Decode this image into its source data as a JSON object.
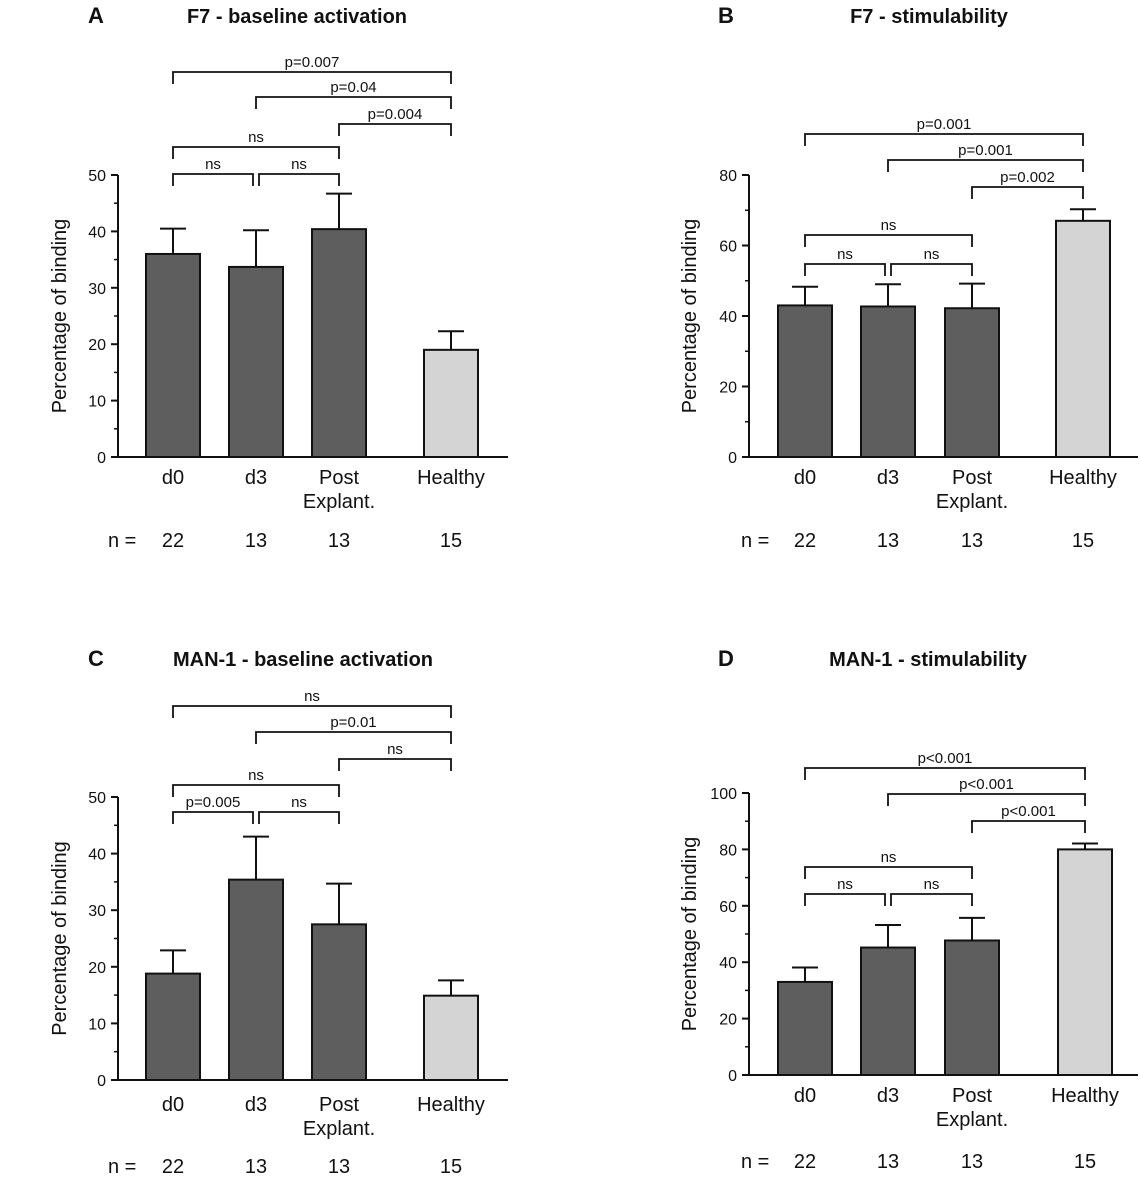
{
  "figure": {
    "n_prefix": "n ="
  },
  "chart_data": [
    {
      "panel": "A",
      "type": "bar",
      "title": "F7 - baseline activation",
      "ylabel": "Percentage of binding",
      "xlabel": "",
      "categories": [
        "d0",
        "d3",
        "Post\nExplant.",
        "Healthy"
      ],
      "values": [
        36,
        33.7,
        40.4,
        19
      ],
      "errors": [
        4.5,
        6.5,
        6.3,
        3.3
      ],
      "bar_colors": [
        "#5e5e5e",
        "#5e5e5e",
        "#5e5e5e",
        "#d4d4d4"
      ],
      "ylim": [
        0,
        50
      ],
      "yticks": [
        0,
        10,
        20,
        30,
        40,
        50
      ],
      "n": [
        "22",
        "13",
        "13",
        "15"
      ],
      "grid": false,
      "comparisons": [
        {
          "from": 0,
          "to": 1,
          "label": "ns"
        },
        {
          "from": 1,
          "to": 2,
          "label": "ns"
        },
        {
          "from": 0,
          "to": 2,
          "label": "ns"
        },
        {
          "from": 2,
          "to": 3,
          "label": "p=0.004"
        },
        {
          "from": 1,
          "to": 3,
          "label": "p=0.04"
        },
        {
          "from": 0,
          "to": 3,
          "label": "p=0.007"
        }
      ]
    },
    {
      "panel": "B",
      "type": "bar",
      "title": "F7 - stimulability",
      "ylabel": "Percentage of binding",
      "xlabel": "",
      "categories": [
        "d0",
        "d3",
        "Post\nExplant.",
        "Healthy"
      ],
      "values": [
        43,
        42.7,
        42.2,
        67
      ],
      "errors": [
        5.3,
        6.3,
        7.0,
        3.3
      ],
      "bar_colors": [
        "#5e5e5e",
        "#5e5e5e",
        "#5e5e5e",
        "#d4d4d4"
      ],
      "ylim": [
        0,
        80
      ],
      "yticks": [
        0,
        20,
        40,
        60,
        80
      ],
      "n": [
        "22",
        "13",
        "13",
        "15"
      ],
      "grid": false,
      "comparisons": [
        {
          "from": 0,
          "to": 1,
          "label": "ns"
        },
        {
          "from": 1,
          "to": 2,
          "label": "ns"
        },
        {
          "from": 0,
          "to": 2,
          "label": "ns"
        },
        {
          "from": 2,
          "to": 3,
          "label": "p=0.002"
        },
        {
          "from": 1,
          "to": 3,
          "label": "p=0.001"
        },
        {
          "from": 0,
          "to": 3,
          "label": "p=0.001"
        }
      ]
    },
    {
      "panel": "C",
      "type": "bar",
      "title": "MAN-1 - baseline activation",
      "ylabel": "Percentage of binding",
      "xlabel": "",
      "categories": [
        "d0",
        "d3",
        "Post\nExplant.",
        "Healthy"
      ],
      "values": [
        18.8,
        35.4,
        27.5,
        14.9
      ],
      "errors": [
        4.1,
        7.6,
        7.2,
        2.7
      ],
      "bar_colors": [
        "#5e5e5e",
        "#5e5e5e",
        "#5e5e5e",
        "#d4d4d4"
      ],
      "ylim": [
        0,
        50
      ],
      "yticks": [
        0,
        10,
        20,
        30,
        40,
        50
      ],
      "n": [
        "22",
        "13",
        "13",
        "15"
      ],
      "grid": false,
      "comparisons": [
        {
          "from": 0,
          "to": 1,
          "label": "p=0.005"
        },
        {
          "from": 1,
          "to": 2,
          "label": "ns"
        },
        {
          "from": 0,
          "to": 2,
          "label": "ns"
        },
        {
          "from": 2,
          "to": 3,
          "label": "ns"
        },
        {
          "from": 1,
          "to": 3,
          "label": "p=0.01"
        },
        {
          "from": 0,
          "to": 3,
          "label": "ns"
        }
      ]
    },
    {
      "panel": "D",
      "type": "bar",
      "title": "MAN-1 - stimulability",
      "ylabel": "Percentage of binding",
      "xlabel": "",
      "categories": [
        "d0",
        "d3",
        "Post\nExplant.",
        "Healthy"
      ],
      "values": [
        33,
        45.2,
        47.7,
        80
      ],
      "errors": [
        5.1,
        8.0,
        8.0,
        2.1
      ],
      "bar_colors": [
        "#5e5e5e",
        "#5e5e5e",
        "#5e5e5e",
        "#d4d4d4"
      ],
      "ylim": [
        0,
        100
      ],
      "yticks": [
        0,
        20,
        40,
        60,
        80,
        100
      ],
      "n": [
        "22",
        "13",
        "13",
        "15"
      ],
      "grid": false,
      "comparisons": [
        {
          "from": 0,
          "to": 1,
          "label": "ns"
        },
        {
          "from": 1,
          "to": 2,
          "label": "ns"
        },
        {
          "from": 0,
          "to": 2,
          "label": "ns"
        },
        {
          "from": 2,
          "to": 3,
          "label": "p<0.001"
        },
        {
          "from": 1,
          "to": 3,
          "label": "p<0.001"
        },
        {
          "from": 0,
          "to": 3,
          "label": "p<0.001"
        }
      ]
    }
  ]
}
